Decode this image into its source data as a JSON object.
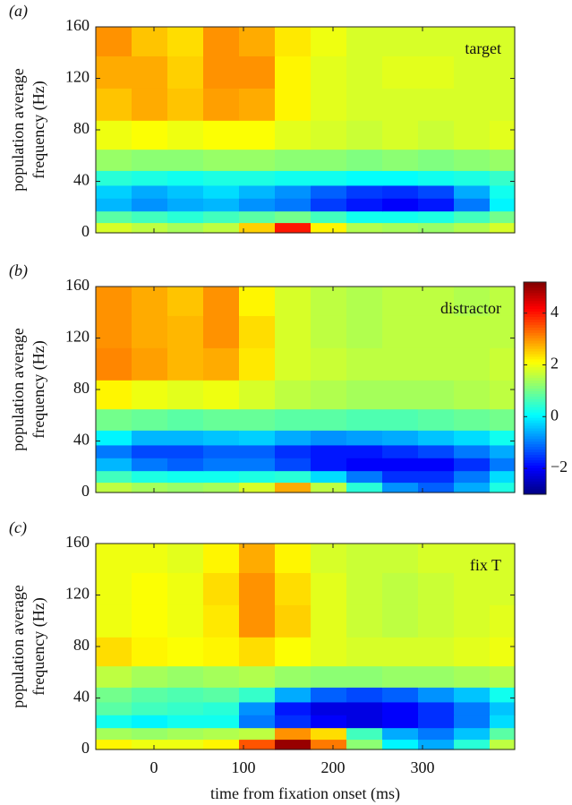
{
  "chart_data": [
    {
      "type": "heatmap",
      "label": "(a)",
      "annotation": "target",
      "ylabel": [
        "population average",
        "frequency (Hz)"
      ],
      "x": [
        -45,
        -5,
        35,
        75,
        115,
        155,
        195,
        235,
        275,
        315,
        355,
        395
      ],
      "y": [
        4,
        12,
        22,
        32,
        42,
        55,
        75,
        100,
        125,
        150
      ],
      "values": [
        [
          1.8,
          1.6,
          1.4,
          1.6,
          2.5,
          4.0,
          2.2,
          1.5,
          1.4,
          1.3,
          1.5,
          1.8
        ],
        [
          0.8,
          0.6,
          0.4,
          0.6,
          0.8,
          1.0,
          0.6,
          0.2,
          0.2,
          0.3,
          0.6,
          1.0
        ],
        [
          -0.5,
          -0.8,
          -0.6,
          -0.5,
          -0.8,
          -1.0,
          -1.5,
          -1.8,
          -2.0,
          -1.8,
          -1.0,
          0.0
        ],
        [
          -0.3,
          -0.6,
          -0.4,
          -0.2,
          -0.5,
          -0.8,
          -1.2,
          -1.5,
          -1.6,
          -1.4,
          -0.6,
          0.2
        ],
        [
          0.4,
          0.3,
          0.2,
          0.3,
          0.3,
          0.2,
          0.2,
          0.1,
          0.1,
          0.2,
          0.3,
          0.5
        ],
        [
          1.3,
          1.2,
          1.2,
          1.3,
          1.3,
          1.2,
          1.2,
          1.1,
          1.2,
          1.1,
          1.2,
          1.3
        ],
        [
          2.0,
          2.1,
          2.0,
          2.1,
          2.1,
          1.9,
          1.8,
          1.7,
          1.8,
          1.7,
          1.8,
          1.9
        ],
        [
          2.6,
          2.8,
          2.6,
          2.9,
          2.8,
          2.2,
          1.9,
          1.8,
          1.8,
          1.8,
          1.8,
          1.8
        ],
        [
          2.8,
          2.8,
          2.5,
          3.0,
          3.0,
          2.2,
          1.9,
          1.8,
          1.9,
          1.9,
          1.8,
          1.8
        ],
        [
          3.0,
          2.6,
          2.4,
          3.0,
          2.8,
          2.3,
          2.0,
          1.8,
          1.8,
          1.8,
          1.8,
          1.8
        ]
      ],
      "xlim": [
        -65,
        403
      ],
      "ylim": [
        0,
        160
      ],
      "xticks": [
        0,
        100,
        200,
        300
      ],
      "yticks": [
        0,
        40,
        80,
        120,
        160
      ],
      "show_xticklabels": false,
      "clim": [
        -3,
        5.2
      ],
      "colormap": "jet"
    },
    {
      "type": "heatmap",
      "label": "(b)",
      "annotation": "distractor",
      "ylabel": [
        "population average",
        "frequency (Hz)"
      ],
      "x": [
        -45,
        -5,
        35,
        75,
        115,
        155,
        195,
        235,
        275,
        315,
        355,
        395
      ],
      "y": [
        4,
        12,
        22,
        32,
        42,
        55,
        75,
        100,
        125,
        150
      ],
      "values": [
        [
          1.6,
          1.4,
          1.3,
          1.4,
          1.8,
          2.8,
          1.6,
          0.4,
          -0.8,
          -1.2,
          -0.6,
          0.3
        ],
        [
          0.6,
          0.3,
          0.2,
          0.2,
          0.3,
          0.4,
          -0.2,
          -1.0,
          -1.6,
          -1.6,
          -1.0,
          -0.2
        ],
        [
          -0.5,
          -1.0,
          -1.2,
          -1.0,
          -1.0,
          -1.4,
          -1.8,
          -2.0,
          -2.0,
          -2.0,
          -1.6,
          -1.0
        ],
        [
          -1.0,
          -1.4,
          -1.4,
          -1.2,
          -1.2,
          -1.6,
          -1.8,
          -1.8,
          -1.6,
          -1.4,
          -1.0,
          -0.6
        ],
        [
          0.0,
          -0.5,
          -0.5,
          -0.4,
          -0.3,
          -0.6,
          -0.8,
          -0.7,
          -0.6,
          -0.4,
          -0.2,
          0.2
        ],
        [
          1.0,
          0.9,
          0.8,
          0.9,
          0.9,
          0.8,
          0.8,
          0.7,
          0.7,
          0.8,
          0.9,
          1.0
        ],
        [
          2.2,
          2.0,
          1.9,
          2.0,
          1.8,
          1.6,
          1.5,
          1.4,
          1.4,
          1.4,
          1.5,
          1.6
        ],
        [
          3.1,
          2.9,
          2.7,
          2.8,
          2.3,
          1.8,
          1.7,
          1.6,
          1.6,
          1.6,
          1.6,
          1.7
        ],
        [
          3.0,
          2.8,
          2.7,
          3.0,
          2.4,
          1.8,
          1.6,
          1.5,
          1.6,
          1.6,
          1.6,
          1.6
        ],
        [
          3.0,
          2.8,
          2.6,
          3.0,
          2.2,
          1.8,
          1.6,
          1.5,
          1.6,
          1.6,
          1.5,
          1.6
        ]
      ],
      "xlim": [
        -65,
        403
      ],
      "ylim": [
        0,
        160
      ],
      "xticks": [
        0,
        100,
        200,
        300
      ],
      "yticks": [
        0,
        40,
        80,
        120,
        160
      ],
      "show_xticklabels": false,
      "clim": [
        -3,
        5.2
      ],
      "colormap": "jet",
      "colorbar": {
        "ticks": [
          {
            "value": -2,
            "label": "−2"
          },
          0,
          2,
          4
        ]
      }
    },
    {
      "type": "heatmap",
      "label": "(c)",
      "annotation": "fix T",
      "ylabel": [
        "population average",
        "frequency (Hz)"
      ],
      "xlabel": "time from fixation onset (ms)",
      "x": [
        -45,
        -5,
        35,
        75,
        115,
        155,
        195,
        235,
        275,
        315,
        355,
        395
      ],
      "y": [
        4,
        12,
        22,
        32,
        42,
        55,
        75,
        100,
        125,
        150
      ],
      "values": [
        [
          2.2,
          2.0,
          2.0,
          2.2,
          3.5,
          5.0,
          3.2,
          1.2,
          0.0,
          -0.6,
          0.4,
          1.6
        ],
        [
          1.4,
          1.3,
          1.4,
          1.5,
          1.6,
          3.0,
          2.4,
          0.6,
          -0.6,
          -1.0,
          -0.4,
          0.8
        ],
        [
          0.2,
          0.0,
          0.2,
          0.2,
          -1.0,
          -1.6,
          -2.0,
          -2.2,
          -2.0,
          -1.6,
          -1.0,
          -0.2
        ],
        [
          0.8,
          0.6,
          0.5,
          0.4,
          -0.8,
          -1.8,
          -2.2,
          -2.2,
          -2.0,
          -1.6,
          -1.0,
          -0.4
        ],
        [
          1.0,
          0.8,
          0.7,
          0.8,
          0.5,
          -0.6,
          -1.2,
          -1.4,
          -1.2,
          -0.8,
          -0.4,
          0.2
        ],
        [
          1.6,
          1.4,
          1.3,
          1.4,
          1.5,
          1.3,
          1.2,
          1.2,
          1.3,
          1.3,
          1.4,
          1.5
        ],
        [
          2.4,
          2.2,
          2.1,
          2.2,
          2.4,
          2.1,
          1.9,
          1.8,
          1.8,
          1.8,
          1.9,
          2.0
        ],
        [
          2.0,
          2.1,
          2.0,
          2.3,
          3.0,
          2.5,
          1.9,
          1.7,
          1.6,
          1.7,
          1.8,
          1.9
        ],
        [
          2.0,
          2.1,
          2.0,
          2.4,
          3.0,
          2.4,
          1.9,
          1.7,
          1.6,
          1.7,
          1.8,
          1.8
        ],
        [
          2.0,
          2.0,
          1.9,
          2.2,
          2.8,
          2.2,
          1.8,
          1.7,
          1.7,
          1.8,
          1.8,
          1.8
        ]
      ],
      "xlim": [
        -65,
        403
      ],
      "ylim": [
        0,
        160
      ],
      "xticks": [
        0,
        100,
        200,
        300
      ],
      "yticks": [
        0,
        40,
        80,
        120,
        160
      ],
      "show_xticklabels": true,
      "clim": [
        -3,
        5.2
      ],
      "colormap": "jet"
    }
  ]
}
